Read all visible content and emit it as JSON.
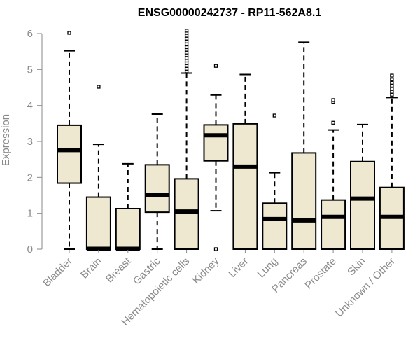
{
  "chart_data": {
    "type": "boxplot",
    "title": "ENSG00000242737 - RP11-562A8.1",
    "xlabel": "",
    "ylabel": "Expression",
    "ylim": [
      0,
      6.1
    ],
    "yticks": [
      0,
      1,
      2,
      3,
      4,
      5,
      6
    ],
    "grid": false,
    "box_fill": "#efe8d0",
    "box_stroke": "#000000",
    "axis_color": "#8a8a8a",
    "categories": [
      "Bladder",
      "Brain",
      "Breast",
      "Gastric",
      "Hematopoietic cells",
      "Kidney",
      "Liver",
      "Lung",
      "Pancreas",
      "Prostate",
      "Skin",
      "Unknown / Other"
    ],
    "boxes": [
      {
        "name": "Bladder",
        "min": 0,
        "q1": 1.84,
        "median": 2.76,
        "q3": 3.45,
        "max": 5.52,
        "outliers": [
          6.02
        ]
      },
      {
        "name": "Brain",
        "min": 0,
        "q1": 0,
        "median": 0.01,
        "q3": 1.45,
        "max": 2.92,
        "outliers": [
          4.52
        ]
      },
      {
        "name": "Breast",
        "min": 0,
        "q1": 0,
        "median": 0.01,
        "q3": 1.13,
        "max": 2.38,
        "outliers": []
      },
      {
        "name": "Gastric",
        "min": 0,
        "q1": 1.03,
        "median": 1.5,
        "q3": 2.35,
        "max": 3.76,
        "outliers": []
      },
      {
        "name": "Hematopoietic cells",
        "min": 0,
        "q1": 0,
        "median": 1.05,
        "q3": 1.96,
        "max": 4.9,
        "outliers": [
          4.95,
          5.02,
          5.1,
          5.18,
          5.25,
          5.32,
          5.4,
          5.47,
          5.55,
          5.62,
          5.7,
          5.78,
          5.86,
          5.94,
          6.02,
          6.08
        ]
      },
      {
        "name": "Kidney",
        "min": 1.07,
        "q1": 2.46,
        "median": 3.17,
        "q3": 3.46,
        "max": 4.29,
        "outliers": [
          5.1,
          0
        ]
      },
      {
        "name": "Liver",
        "min": 0,
        "q1": 0,
        "median": 2.3,
        "q3": 3.49,
        "max": 4.86,
        "outliers": []
      },
      {
        "name": "Lung",
        "min": 0,
        "q1": 0,
        "median": 0.84,
        "q3": 1.28,
        "max": 2.13,
        "outliers": [
          3.72
        ]
      },
      {
        "name": "Pancreas",
        "min": 0,
        "q1": 0,
        "median": 0.8,
        "q3": 2.68,
        "max": 5.76,
        "outliers": []
      },
      {
        "name": "Prostate",
        "min": 0,
        "q1": 0,
        "median": 0.9,
        "q3": 1.37,
        "max": 3.32,
        "outliers": [
          3.52,
          4.1,
          4.15
        ]
      },
      {
        "name": "Skin",
        "min": 0,
        "q1": 0,
        "median": 1.41,
        "q3": 2.44,
        "max": 3.47,
        "outliers": []
      },
      {
        "name": "Unknown / Other",
        "min": 0,
        "q1": 0,
        "median": 0.9,
        "q3": 1.72,
        "max": 4.22,
        "outliers": [
          4.3,
          4.38,
          4.46,
          4.55,
          4.63,
          4.72,
          4.83
        ]
      }
    ]
  }
}
